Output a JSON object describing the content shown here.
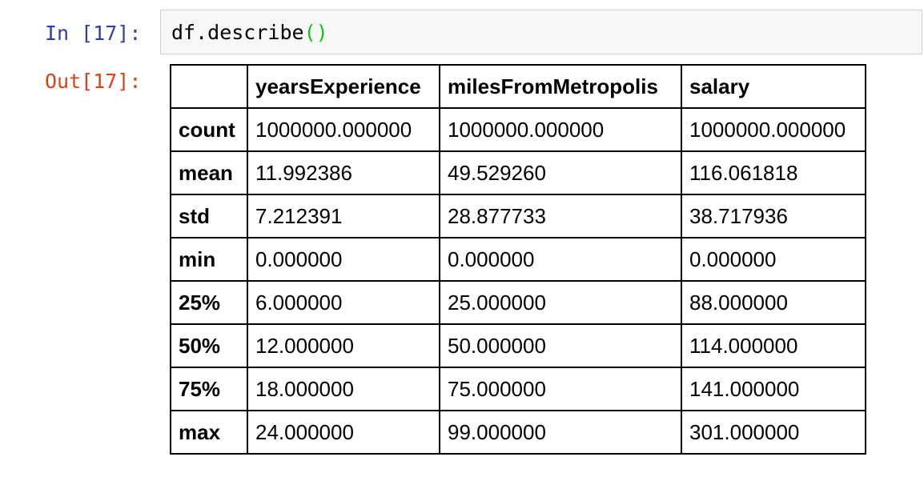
{
  "cell": {
    "input_prompt": "In [17]:",
    "output_prompt": "Out[17]:",
    "code": {
      "prefix": "df.describe",
      "open_paren": "(",
      "close_paren": ")"
    }
  },
  "table": {
    "columns": [
      "",
      "yearsExperience",
      "milesFromMetropolis",
      "salary"
    ],
    "rows": [
      {
        "label": "count",
        "values": [
          "1000000.000000",
          "1000000.000000",
          "1000000.000000"
        ]
      },
      {
        "label": "mean",
        "values": [
          "11.992386",
          "49.529260",
          "116.061818"
        ]
      },
      {
        "label": "std",
        "values": [
          "7.212391",
          "28.877733",
          "38.717936"
        ]
      },
      {
        "label": "min",
        "values": [
          "0.000000",
          "0.000000",
          "0.000000"
        ]
      },
      {
        "label": "25%",
        "values": [
          "6.000000",
          "25.000000",
          "88.000000"
        ]
      },
      {
        "label": "50%",
        "values": [
          "12.000000",
          "50.000000",
          "114.000000"
        ]
      },
      {
        "label": "75%",
        "values": [
          "18.000000",
          "75.000000",
          "141.000000"
        ]
      },
      {
        "label": "max",
        "values": [
          "24.000000",
          "99.000000",
          "301.000000"
        ]
      }
    ]
  },
  "colors": {
    "input_prompt": "#303f9f",
    "output_prompt": "#d84315",
    "paren_highlight": "#17c017",
    "input_background": "#f7f7f7",
    "input_border": "#cfcfcf"
  }
}
